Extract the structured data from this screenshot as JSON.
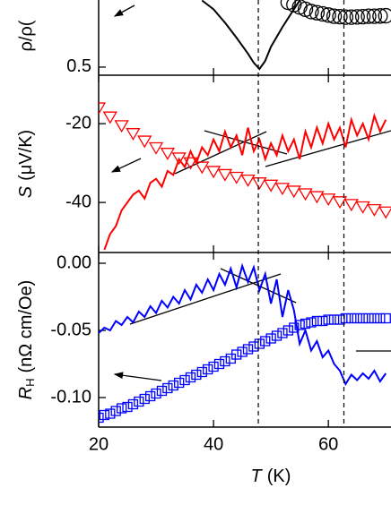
{
  "chart_data": [
    {
      "type": "line",
      "ylabel": "ρ/ρ(",
      "ylim": [
        0.465,
        0.79
      ],
      "yticks": [
        0.5
      ],
      "xlim": [
        20,
        70.9
      ],
      "series": [
        {
          "color": "#000000",
          "marker": "none",
          "x": [
            38,
            40,
            42,
            44,
            46,
            47,
            48,
            49,
            50,
            52,
            54,
            55
          ],
          "values": [
            0.788,
            0.75,
            0.692,
            0.627,
            0.558,
            0.519,
            0.492,
            0.527,
            0.588,
            0.673,
            0.75,
            0.788
          ]
        },
        {
          "color": "#000000",
          "marker": "circle",
          "x": [
            53,
            54,
            55,
            56,
            57,
            58,
            59,
            60,
            61,
            62,
            63,
            64,
            65,
            66,
            67,
            68,
            69,
            70
          ],
          "values": [
            0.78,
            0.77,
            0.76,
            0.75,
            0.74,
            0.735,
            0.73,
            0.725,
            0.72,
            0.718,
            0.716,
            0.716,
            0.717,
            0.718,
            0.72,
            0.72,
            0.721,
            0.722
          ]
        }
      ]
    },
    {
      "type": "line",
      "ylabel": {
        "symbol": "S",
        "unit": "(μV/K)"
      },
      "ylim": [
        -52.7,
        -7.7
      ],
      "yticks": [
        -20,
        -40
      ],
      "xlim": [
        20,
        70.9
      ],
      "series": [
        {
          "color": "#ff0000",
          "marker": "triangle-down",
          "x": [
            20,
            22,
            24,
            26,
            28,
            30,
            32,
            34,
            36,
            38,
            40,
            42,
            44,
            46,
            48,
            50,
            52,
            54,
            56,
            58,
            60,
            62,
            64,
            66,
            68,
            70
          ],
          "values": [
            -15.9,
            -18.2,
            -20.4,
            -22.4,
            -24.3,
            -26.0,
            -27.4,
            -28.6,
            -29.8,
            -30.9,
            -32.0,
            -32.8,
            -33.5,
            -34.2,
            -34.9,
            -35.5,
            -36.3,
            -37.0,
            -37.7,
            -38.4,
            -39.0,
            -39.7,
            -40.4,
            -41.0,
            -41.7,
            -42.3
          ]
        },
        {
          "color": "#ff0000",
          "marker": "none",
          "x": [
            21,
            22,
            23,
            24,
            25,
            26,
            27,
            28,
            29,
            30,
            31,
            32,
            33,
            34,
            35,
            36,
            37,
            38,
            39,
            40,
            41,
            42,
            43,
            44,
            45,
            46,
            47,
            48,
            49,
            50,
            51,
            52,
            53,
            54,
            55,
            56,
            57,
            58,
            59,
            60,
            61,
            62,
            63,
            64,
            65,
            66,
            67,
            68,
            69,
            70
          ],
          "values": [
            -52,
            -48,
            -46,
            -42,
            -40,
            -38,
            -37,
            -39,
            -35,
            -34,
            -36,
            -32,
            -33,
            -29,
            -31,
            -27,
            -30,
            -26,
            -28,
            -24,
            -27,
            -22,
            -26,
            -23,
            -28,
            -21,
            -27,
            -24,
            -29,
            -25,
            -28,
            -23,
            -27,
            -24,
            -29,
            -22,
            -26,
            -21,
            -25,
            -20,
            -24,
            -21,
            -26,
            -19,
            -23,
            -20,
            -24,
            -18,
            -22,
            -19
          ]
        }
      ]
    },
    {
      "type": "line",
      "ylabel": {
        "symbol": "R",
        "subscript": "H",
        "unit": "(nΩ cm/Oe)"
      },
      "ylim": [
        -0.122,
        0.008
      ],
      "yticks": [
        {
          "value": 0,
          "label": "0.00"
        },
        {
          "value": -0.05,
          "label": "-0.05"
        },
        {
          "value": -0.1,
          "label": "-0.10"
        }
      ],
      "xlim": [
        20,
        70.9
      ],
      "xticks": [
        20,
        40,
        60
      ],
      "xlabel": {
        "symbol": "T",
        "unit": "(K)"
      },
      "vlines": [
        47.8,
        62.7
      ],
      "series": [
        {
          "color": "#0000ff",
          "marker": "square",
          "x": [
            20,
            21,
            22,
            23,
            24,
            25,
            26,
            27,
            28,
            29,
            30,
            31,
            32,
            33,
            34,
            35,
            36,
            37,
            38,
            39,
            40,
            41,
            42,
            43,
            44,
            45,
            46,
            47,
            48,
            49,
            50,
            51,
            52,
            53,
            54,
            55,
            56,
            57,
            58,
            59,
            60,
            61,
            62,
            63,
            64,
            65,
            66,
            67,
            68,
            69,
            70
          ],
          "values": [
            -0.115,
            -0.113,
            -0.112,
            -0.11,
            -0.108,
            -0.107,
            -0.105,
            -0.103,
            -0.101,
            -0.099,
            -0.097,
            -0.095,
            -0.093,
            -0.091,
            -0.089,
            -0.087,
            -0.085,
            -0.083,
            -0.081,
            -0.079,
            -0.077,
            -0.075,
            -0.073,
            -0.071,
            -0.068,
            -0.066,
            -0.064,
            -0.062,
            -0.06,
            -0.058,
            -0.056,
            -0.054,
            -0.052,
            -0.05,
            -0.048,
            -0.046,
            -0.045,
            -0.044,
            -0.043,
            -0.043,
            -0.042,
            -0.042,
            -0.042,
            -0.041,
            -0.041,
            -0.041,
            -0.041,
            -0.041,
            -0.041,
            -0.041,
            -0.041
          ]
        },
        {
          "color": "#0000ff",
          "marker": "none",
          "x": [
            20,
            21,
            22,
            23,
            24,
            25,
            26,
            27,
            28,
            29,
            30,
            31,
            32,
            33,
            34,
            35,
            36,
            37,
            38,
            39,
            40,
            41,
            42,
            43,
            44,
            45,
            46,
            47,
            48,
            49,
            50,
            51,
            52,
            53,
            54,
            55,
            56,
            57,
            58,
            59,
            60,
            61,
            62,
            63,
            64,
            65,
            66,
            67,
            68,
            69,
            70
          ],
          "values": [
            -0.052,
            -0.048,
            -0.05,
            -0.043,
            -0.046,
            -0.04,
            -0.044,
            -0.036,
            -0.04,
            -0.032,
            -0.037,
            -0.028,
            -0.033,
            -0.025,
            -0.03,
            -0.02,
            -0.027,
            -0.016,
            -0.022,
            -0.012,
            -0.02,
            -0.008,
            -0.016,
            -0.004,
            -0.018,
            -0.002,
            -0.014,
            -0.003,
            -0.02,
            -0.008,
            -0.03,
            -0.012,
            -0.04,
            -0.02,
            -0.035,
            -0.06,
            -0.05,
            -0.065,
            -0.058,
            -0.07,
            -0.065,
            -0.075,
            -0.08,
            -0.09,
            -0.083,
            -0.087,
            -0.082,
            -0.086,
            -0.08,
            -0.088,
            -0.082
          ]
        }
      ]
    }
  ]
}
